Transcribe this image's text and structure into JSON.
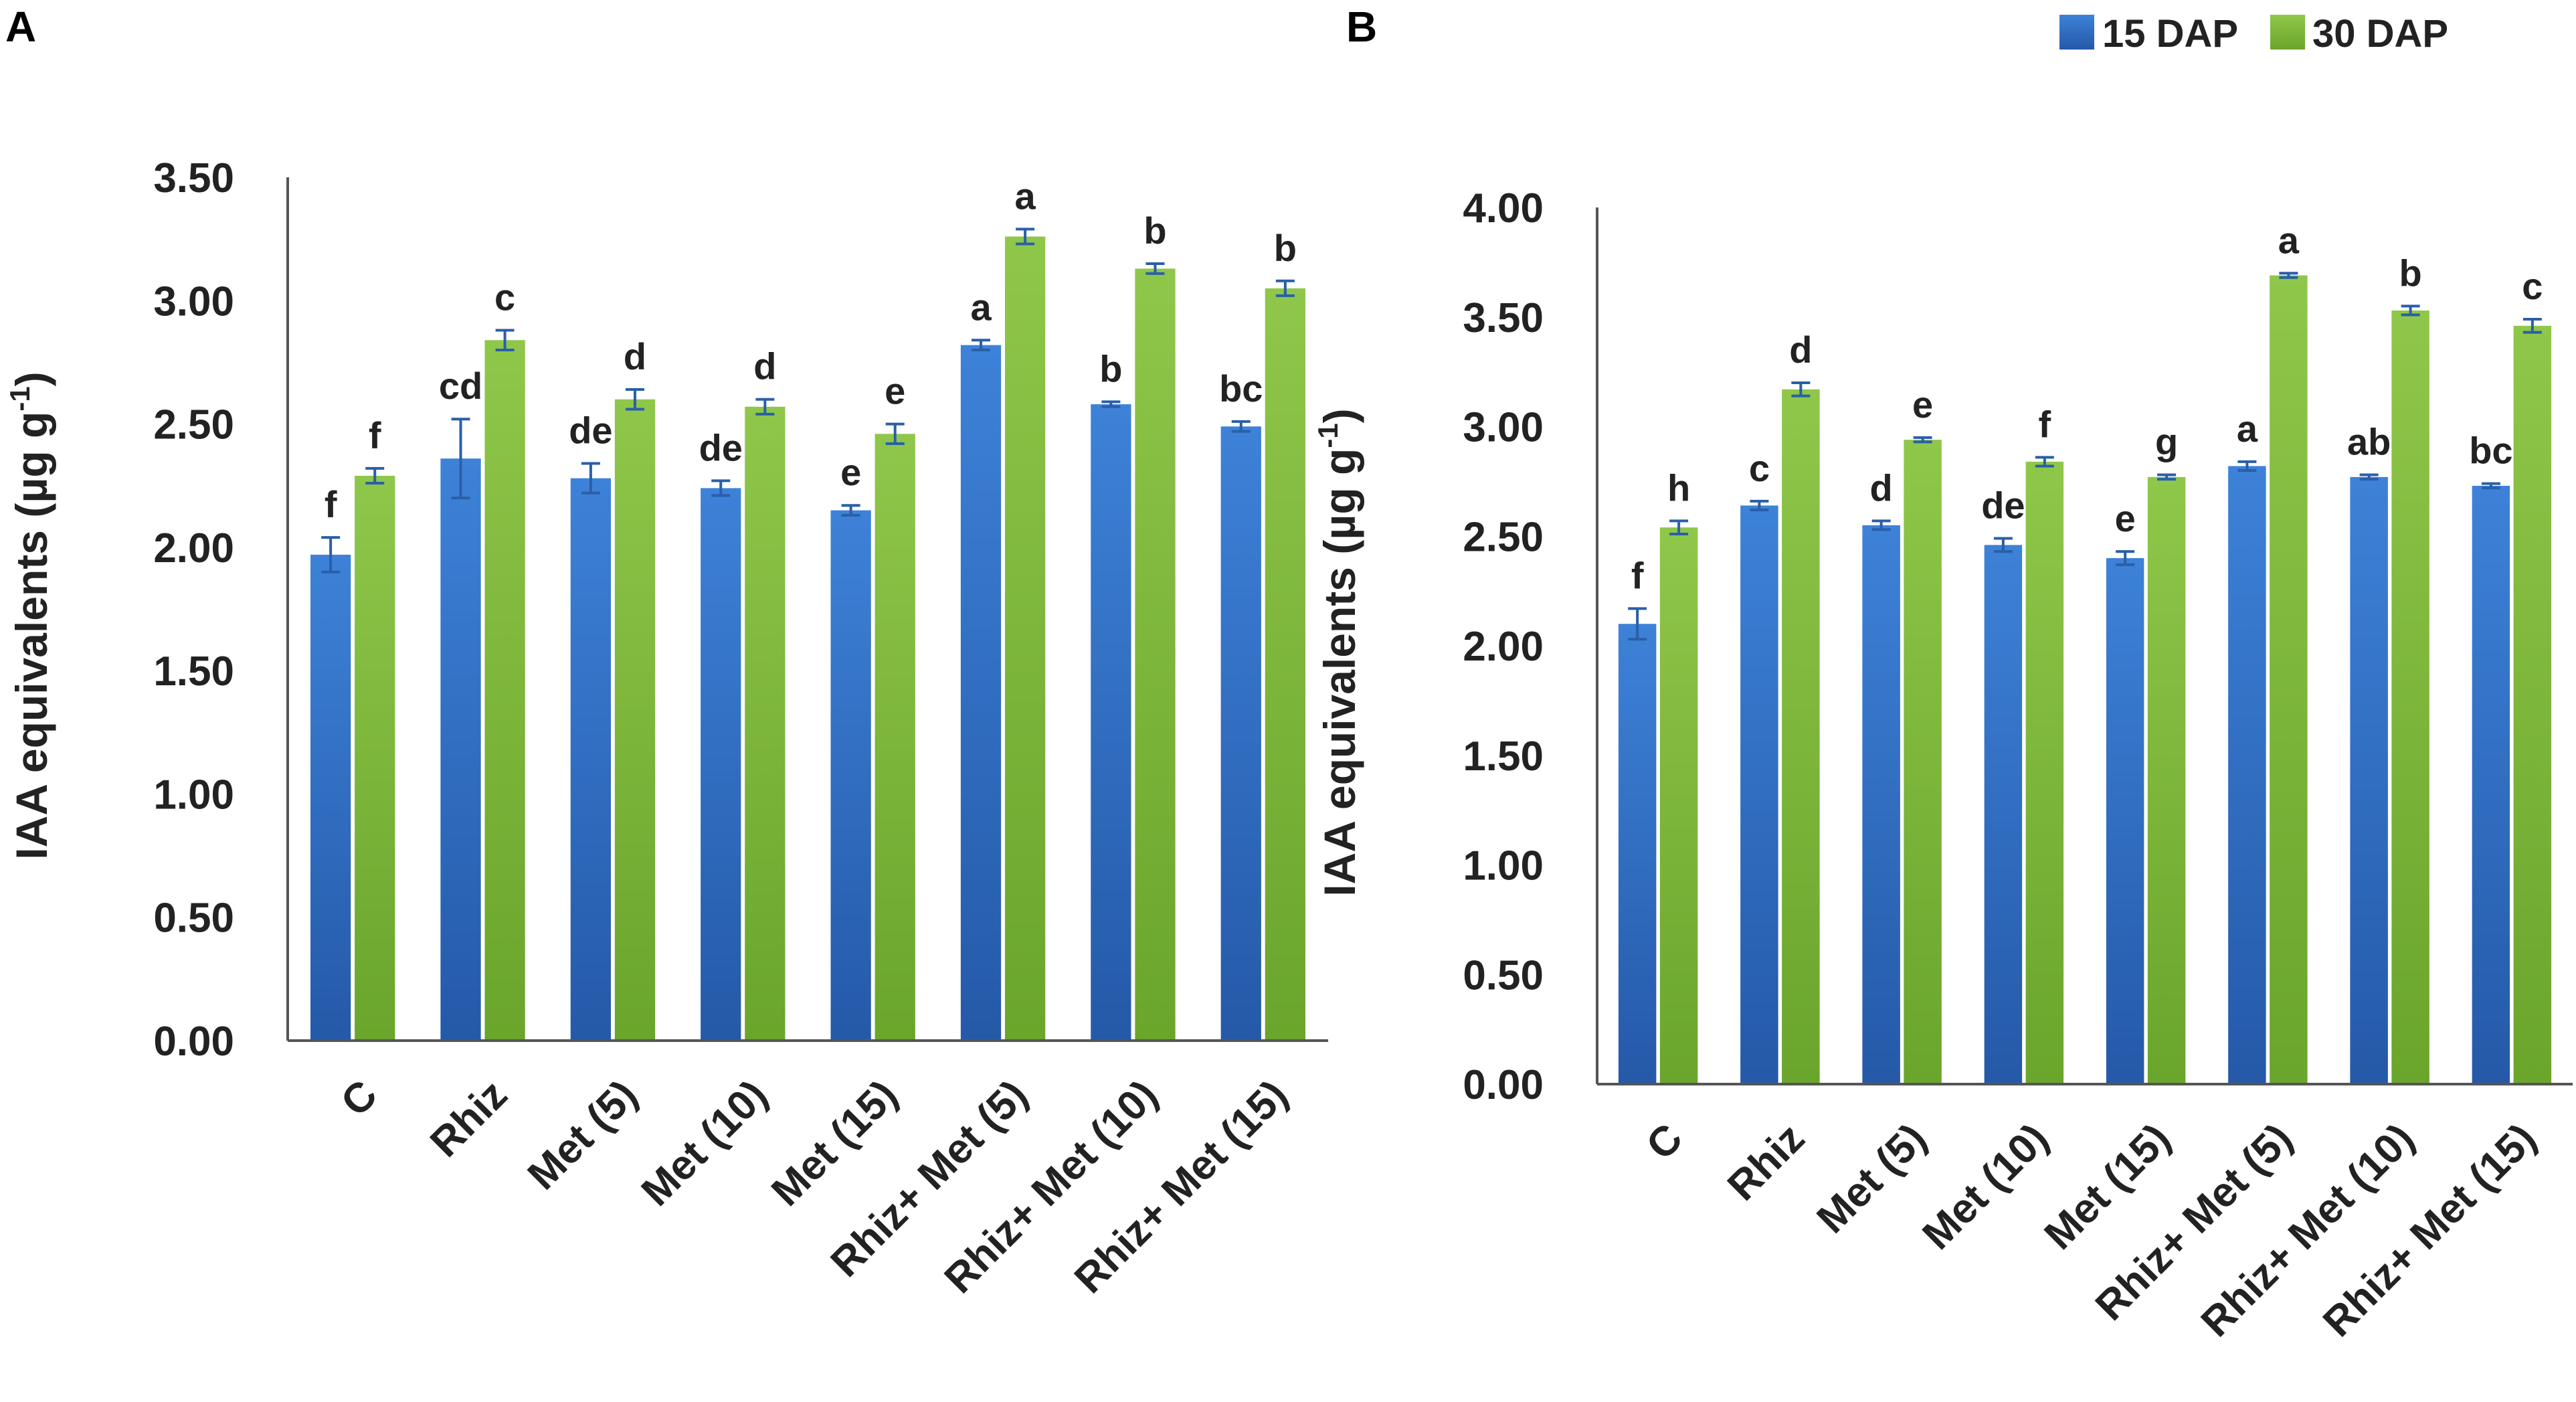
{
  "legend": [
    {
      "label": "15 DAP",
      "color": "#2f6fc6"
    },
    {
      "label": "30 DAP",
      "color": "#7cb738"
    }
  ],
  "colors": {
    "series1": "#2f6fc6",
    "series2": "#7cb738",
    "errorbar": "#2a5fa8",
    "axis": "#555555"
  },
  "chart_data": [
    {
      "type": "bar",
      "panel_label": "A",
      "ylabel": "IAA equivalents (µg g-1)",
      "ylabel_main": "IAA equivalents (µg g",
      "ylabel_sup": "-1",
      "ylabel_end": ")",
      "ylim": [
        0,
        3.5
      ],
      "yticks": [
        "0.00",
        "0.50",
        "1.00",
        "1.50",
        "2.00",
        "2.50",
        "3.00",
        "3.50"
      ],
      "categories": [
        "C",
        "Rhiz",
        "Met (5)",
        "Met (10)",
        "Met (15)",
        "Rhiz+ Met (5)",
        "Rhiz+ Met (10)",
        "Rhiz+ Met (15)"
      ],
      "series": [
        {
          "name": "15 DAP",
          "values": [
            1.97,
            2.36,
            2.28,
            2.24,
            2.15,
            2.82,
            2.58,
            2.49
          ],
          "errors": [
            0.07,
            0.16,
            0.06,
            0.03,
            0.02,
            0.02,
            0.01,
            0.02
          ],
          "letters": [
            "f",
            "cd",
            "de",
            "de",
            "e",
            "a",
            "b",
            "bc"
          ]
        },
        {
          "name": "30 DAP",
          "values": [
            2.29,
            2.84,
            2.6,
            2.57,
            2.46,
            3.26,
            3.13,
            3.05
          ],
          "errors": [
            0.03,
            0.04,
            0.04,
            0.03,
            0.04,
            0.03,
            0.02,
            0.03
          ],
          "letters": [
            "f",
            "c",
            "d",
            "d",
            "e",
            "a",
            "b",
            "b"
          ]
        }
      ]
    },
    {
      "type": "bar",
      "panel_label": "B",
      "ylabel": "IAA equivalents (µg g-1)",
      "ylabel_main": "IAA equivalents (µg g",
      "ylabel_sup": "-1",
      "ylabel_end": ")",
      "ylim": [
        0,
        4.0
      ],
      "yticks": [
        "0.00",
        "0.50",
        "1.00",
        "1.50",
        "2.00",
        "2.50",
        "3.00",
        "3.50",
        "4.00"
      ],
      "categories": [
        "C",
        "Rhiz",
        "Met (5)",
        "Met (10)",
        "Met (15)",
        "Rhiz+ Met (5)",
        "Rhiz+ Met (10)",
        "Rhiz+ Met (15)"
      ],
      "series": [
        {
          "name": "15 DAP",
          "values": [
            2.1,
            2.64,
            2.55,
            2.46,
            2.4,
            2.82,
            2.77,
            2.73
          ],
          "errors": [
            0.07,
            0.02,
            0.02,
            0.03,
            0.03,
            0.02,
            0.01,
            0.01
          ],
          "letters": [
            "f",
            "c",
            "d",
            "de",
            "e",
            "a",
            "ab",
            "bc"
          ]
        },
        {
          "name": "30 DAP",
          "values": [
            2.54,
            3.17,
            2.94,
            2.84,
            2.77,
            3.69,
            3.53,
            3.46
          ],
          "errors": [
            0.03,
            0.03,
            0.01,
            0.02,
            0.01,
            0.01,
            0.02,
            0.03
          ],
          "letters": [
            "h",
            "d",
            "e",
            "f",
            "g",
            "a",
            "b",
            "c"
          ]
        }
      ]
    }
  ]
}
